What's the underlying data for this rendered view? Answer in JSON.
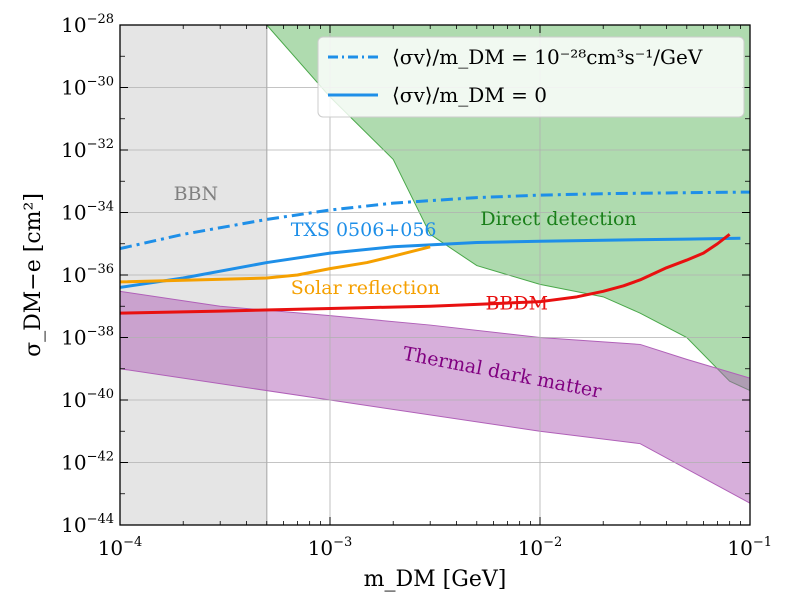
{
  "chart_data": {
    "type": "line",
    "xscale": "log",
    "yscale": "log",
    "xlim": [
      0.0001,
      0.1
    ],
    "ylim": [
      1e-44,
      1e-28
    ],
    "xlabel": "m_DM [GeV]",
    "ylabel": "σ_DM−e [cm²]",
    "x_tick_exponents": [
      -4,
      -3,
      -2,
      -1
    ],
    "y_tick_exponents": [
      -28,
      -30,
      -32,
      -34,
      -36,
      -38,
      -40,
      -42,
      -44
    ],
    "x_tick_labels": [
      "10−4",
      "10−3",
      "10−2",
      "10−1"
    ],
    "y_tick_labels": [
      "10−28",
      "10−30",
      "10−32",
      "10−34",
      "10−36",
      "10−38",
      "10−40",
      "10−42",
      "10−44"
    ],
    "grid": true,
    "legend_position": "top-right",
    "legend": [
      {
        "label": "⟨σv⟩/m_DM = 10⁻²⁸cm³s⁻¹/GeV",
        "style": "dashdot",
        "color": "#1e8fe8"
      },
      {
        "label": "⟨σv⟩/m_DM = 0",
        "style": "solid",
        "color": "#1e8fe8"
      }
    ],
    "regions": [
      {
        "name": "BBN",
        "label": "BBN",
        "color": "#bfbfbf",
        "label_color": "#808080",
        "x_range": [
          0.0001,
          0.0005
        ]
      },
      {
        "name": "Direct detection",
        "label": "Direct detection",
        "color": "#6dbd6d",
        "label_color": "#1a7f1a",
        "upper": "top of plot",
        "lower_boundary": [
          [
            0.0005,
            1e-28
          ],
          [
            0.001,
            5e-31
          ],
          [
            0.002,
            5e-33
          ],
          [
            0.003,
            2e-35
          ],
          [
            0.005,
            2e-36
          ],
          [
            0.01,
            5e-37
          ],
          [
            0.02,
            2e-37
          ],
          [
            0.03,
            6e-38
          ],
          [
            0.05,
            1e-38
          ],
          [
            0.08,
            4e-40
          ],
          [
            0.1,
            2e-40
          ]
        ]
      },
      {
        "name": "Thermal dark matter",
        "label": "Thermal dark matter",
        "color": "#b060b8",
        "label_color": "#800080",
        "upper_boundary": [
          [
            0.0001,
            3e-37
          ],
          [
            0.0003,
            1e-37
          ],
          [
            0.001,
            5e-38
          ],
          [
            0.003,
            2.5e-38
          ],
          [
            0.01,
            1e-38
          ],
          [
            0.03,
            6e-39
          ],
          [
            0.05,
            2e-39
          ],
          [
            0.1,
            5e-40
          ]
        ],
        "lower_boundary": [
          [
            0.0001,
            1e-39
          ],
          [
            0.001,
            1e-40
          ],
          [
            0.01,
            1e-41
          ],
          [
            0.03,
            4e-42
          ],
          [
            0.1,
            5e-44
          ]
        ]
      }
    ],
    "series": [
      {
        "name": "TXS 0506+056 (⟨σv⟩/m_DM = 10⁻²⁸)",
        "color": "#1e8fe8",
        "style": "dashdot",
        "x": [
          0.0001,
          0.0002,
          0.0005,
          0.001,
          0.002,
          0.005,
          0.01,
          0.02,
          0.05,
          0.1
        ],
        "y": [
          7e-36,
          2e-35,
          6e-35,
          1.2e-34,
          2e-34,
          3e-34,
          3.6e-34,
          4e-34,
          4.3e-34,
          4.5e-34
        ]
      },
      {
        "name": "TXS 0506+056 (⟨σv⟩/m_DM = 0)",
        "color": "#1e8fe8",
        "style": "solid",
        "x": [
          0.0001,
          0.0002,
          0.0005,
          0.001,
          0.002,
          0.005,
          0.01,
          0.02,
          0.05,
          0.09
        ],
        "y": [
          4e-37,
          8e-37,
          2.5e-36,
          5e-36,
          8e-36,
          1.1e-35,
          1.2e-35,
          1.3e-35,
          1.4e-35,
          1.5e-35
        ]
      },
      {
        "name": "Solar reflection",
        "color": "#f5a000",
        "style": "solid",
        "x": [
          0.0001,
          0.0005,
          0.0007,
          0.001,
          0.0015,
          0.002,
          0.003
        ],
        "y": [
          6e-37,
          8e-37,
          1e-36,
          1.6e-36,
          2.5e-36,
          4e-36,
          8e-36
        ]
      },
      {
        "name": "BBDM",
        "color": "#e81010",
        "style": "solid",
        "x": [
          0.0001,
          0.0003,
          0.001,
          0.003,
          0.005,
          0.01,
          0.015,
          0.02,
          0.025,
          0.03,
          0.04,
          0.05,
          0.06,
          0.07,
          0.08
        ],
        "y": [
          6e-38,
          7e-38,
          8.5e-38,
          1e-37,
          1.15e-37,
          1.4e-37,
          2e-37,
          3e-37,
          4.5e-37,
          7e-37,
          1.7e-36,
          3e-36,
          5e-36,
          1e-35,
          2e-35
        ]
      }
    ],
    "annotations": [
      {
        "text": "BBN",
        "color": "#808080",
        "x": 0.00018,
        "y": 2.5e-34,
        "rotation": 0
      },
      {
        "text": "TXS 0506+056",
        "color": "#1e8fe8",
        "x": 0.00065,
        "y": 1.8e-35,
        "rotation": 0
      },
      {
        "text": "Direct detection",
        "color": "#1a7f1a",
        "x": 0.0052,
        "y": 4e-35,
        "rotation": 0
      },
      {
        "text": "Solar reflection",
        "color": "#f5a000",
        "x": 0.00065,
        "y": 2.5e-37,
        "rotation": 0
      },
      {
        "text": "BBDM",
        "color": "#e81010",
        "x": 0.0055,
        "y": 8e-38,
        "rotation": 0
      },
      {
        "text": "Thermal dark matter",
        "color": "#800080",
        "x": 0.0022,
        "y": 2e-39,
        "rotation": 11
      }
    ]
  }
}
